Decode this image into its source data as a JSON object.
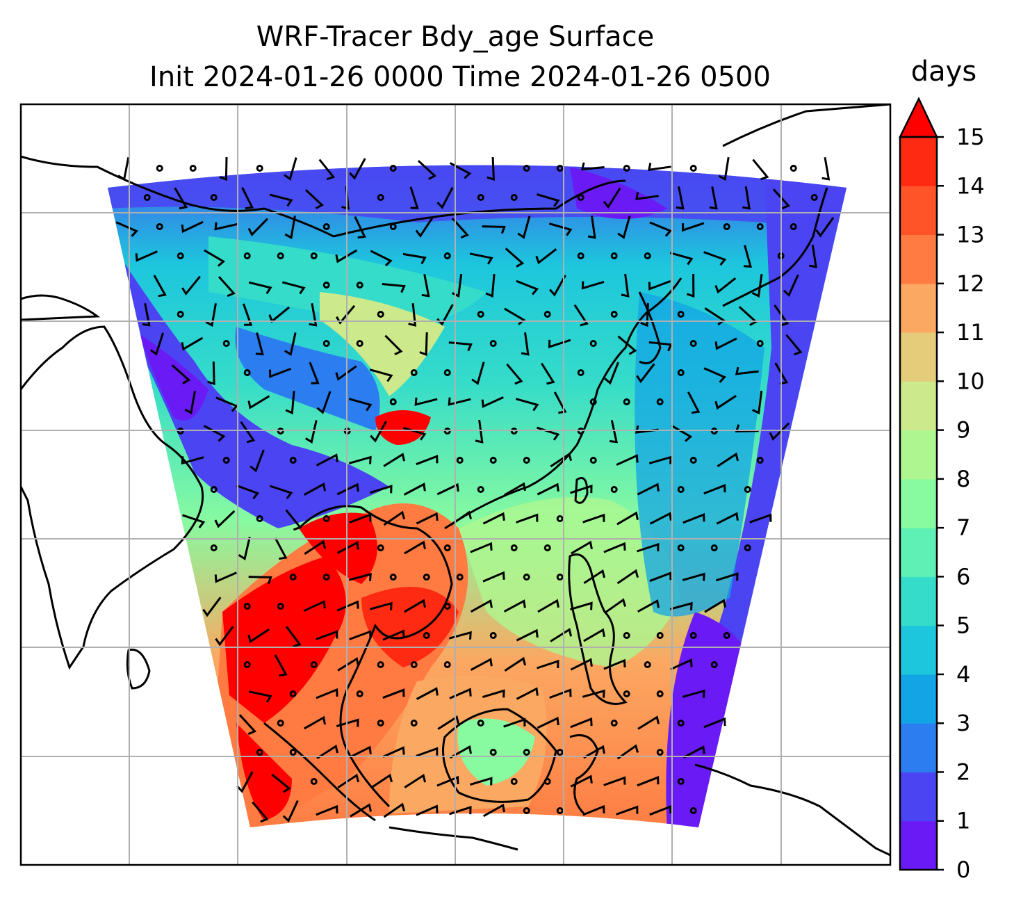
{
  "title": {
    "line1": "WRF-Tracer Bdy_age Surface",
    "line2": "Init 2024-01-26 0000 Time 2024-01-26 0500"
  },
  "colorbar": {
    "unit": "days",
    "min": 0,
    "max": 15,
    "extend": "max",
    "ticks": [
      "0",
      "1",
      "2",
      "3",
      "4",
      "5",
      "6",
      "7",
      "8",
      "9",
      "10",
      "11",
      "12",
      "13",
      "14",
      "15"
    ],
    "colors": [
      "#6a1bf5",
      "#4a44f2",
      "#2c7ef0",
      "#13a4e6",
      "#1dc6dd",
      "#35dcc9",
      "#5ef0b4",
      "#88faa0",
      "#aef790",
      "#cce98c",
      "#e5cc7a",
      "#fba862",
      "#ff7b42",
      "#ff5428",
      "#ff2a12",
      "#ff0000"
    ],
    "extend_color": "#ff0000"
  },
  "map": {
    "gridlines": true,
    "coastlines": true
  }
}
